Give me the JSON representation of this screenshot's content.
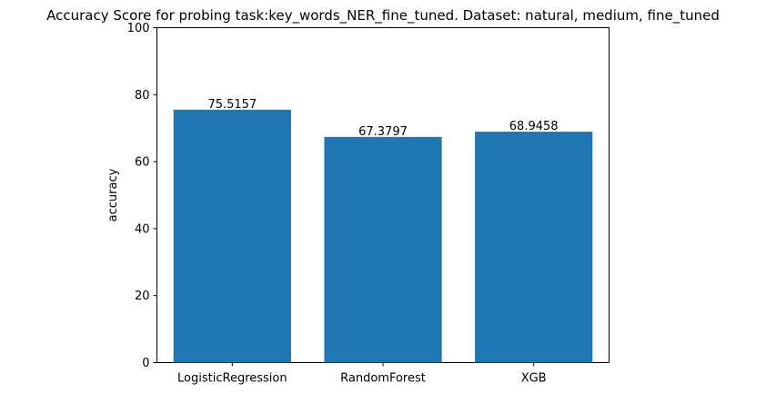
{
  "chart_data": {
    "type": "bar",
    "title": "Accuracy Score for probing task:key_words_NER_fine_tuned. Dataset: natural, medium, fine_tuned",
    "xlabel": "",
    "ylabel": "accuracy",
    "categories": [
      "LogisticRegression",
      "RandomForest",
      "XGB"
    ],
    "values": [
      75.5157,
      67.3797,
      68.9458
    ],
    "data_labels": [
      "75.5157",
      "67.3797",
      "68.9458"
    ],
    "ylim": [
      0,
      100
    ],
    "yticks": [
      0,
      20,
      40,
      60,
      80,
      100
    ],
    "ytick_labels": [
      "0",
      "20",
      "40",
      "60",
      "80",
      "100"
    ],
    "bar_color": "#1f77b4",
    "grid": false,
    "legend": "none"
  }
}
